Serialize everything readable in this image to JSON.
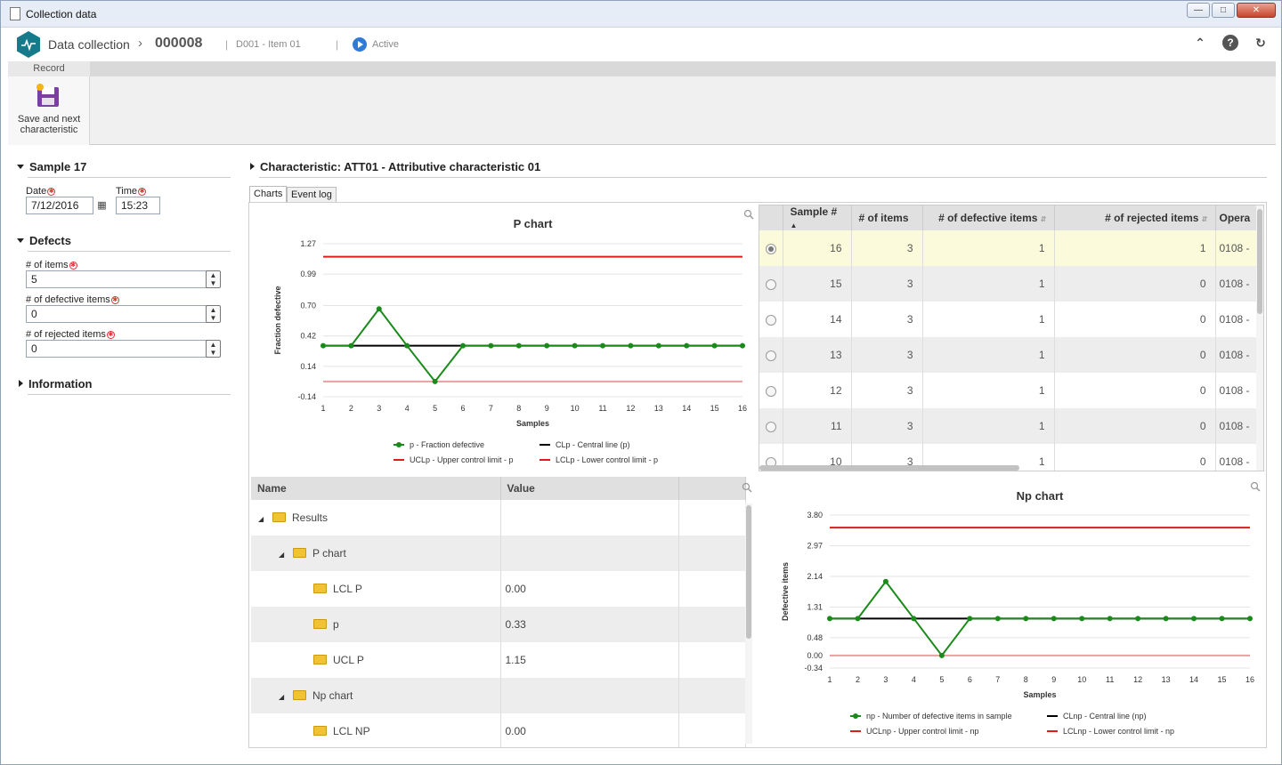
{
  "window": {
    "title": "Collection data"
  },
  "header": {
    "app_name": "Data collection",
    "record_id": "000008",
    "item": "D001 - Item 01",
    "status": "Active",
    "accent": "#2f7bd6"
  },
  "ribbon": {
    "tab": "Record",
    "save_next_line1": "Save and next",
    "save_next_line2": "characteristic"
  },
  "left": {
    "sample_title": "Sample 17",
    "date_label": "Date",
    "date_value": "7/12/2016",
    "time_label": "Time",
    "time_value": "15:23",
    "defects_title": "Defects",
    "items_label": "# of items",
    "items_value": "5",
    "defective_label": "# of defective items",
    "defective_value": "0",
    "rejected_label": "# of rejected items",
    "rejected_value": "0",
    "information_title": "Information"
  },
  "characteristic": {
    "title": "Characteristic: ATT01 - Attributive characteristic 01",
    "tab_charts": "Charts",
    "tab_eventlog": "Event log"
  },
  "samples_table": {
    "columns": [
      "Sample #",
      "# of items",
      "# of defective items",
      "# of rejected items",
      "Opera"
    ],
    "rows": [
      {
        "sample": "16",
        "items": "3",
        "defective": "1",
        "rejected": "1",
        "oper": "0108 -"
      },
      {
        "sample": "15",
        "items": "3",
        "defective": "1",
        "rejected": "0",
        "oper": "0108 -"
      },
      {
        "sample": "14",
        "items": "3",
        "defective": "1",
        "rejected": "0",
        "oper": "0108 -"
      },
      {
        "sample": "13",
        "items": "3",
        "defective": "1",
        "rejected": "0",
        "oper": "0108 -"
      },
      {
        "sample": "12",
        "items": "3",
        "defective": "1",
        "rejected": "0",
        "oper": "0108 -"
      },
      {
        "sample": "11",
        "items": "3",
        "defective": "1",
        "rejected": "0",
        "oper": "0108 -"
      },
      {
        "sample": "10",
        "items": "3",
        "defective": "1",
        "rejected": "0",
        "oper": "0108 -"
      }
    ]
  },
  "results_tree": {
    "columns": [
      "Name",
      "Value"
    ],
    "rows": [
      {
        "name": "Results",
        "value": "",
        "level": 0,
        "expand": true
      },
      {
        "name": "P chart",
        "value": "",
        "level": 1,
        "expand": true
      },
      {
        "name": "LCL P",
        "value": "0.00",
        "level": 2,
        "expand": false
      },
      {
        "name": "p",
        "value": "0.33",
        "level": 2,
        "expand": false
      },
      {
        "name": "UCL P",
        "value": "1.15",
        "level": 2,
        "expand": false
      },
      {
        "name": "Np chart",
        "value": "",
        "level": 1,
        "expand": true
      },
      {
        "name": "LCL NP",
        "value": "0.00",
        "level": 2,
        "expand": false
      }
    ]
  },
  "chart_data": [
    {
      "type": "line",
      "title": "P chart",
      "xlabel": "Samples",
      "ylabel": "Fraction defective",
      "ylim": [
        -0.14,
        1.27
      ],
      "yticks": [
        "1.27",
        "0.99",
        "0.70",
        "0.42",
        "0.14",
        "-0.14"
      ],
      "categories": [
        "1",
        "2",
        "3",
        "4",
        "5",
        "6",
        "7",
        "8",
        "9",
        "10",
        "11",
        "12",
        "13",
        "14",
        "15",
        "16"
      ],
      "series": [
        {
          "name": "p - Fraction defective",
          "color": "#1a8a1a",
          "markers": true,
          "values": [
            0.33,
            0.33,
            0.67,
            0.33,
            0.0,
            0.33,
            0.33,
            0.33,
            0.33,
            0.33,
            0.33,
            0.33,
            0.33,
            0.33,
            0.33,
            0.33
          ]
        },
        {
          "name": "CLp - Central line (p)",
          "color": "#000000",
          "values": [
            0.33,
            0.33,
            0.33,
            0.33,
            0.33,
            0.33,
            0.33,
            0.33,
            0.33,
            0.33,
            0.33,
            0.33,
            0.33,
            0.33,
            0.33,
            0.33
          ]
        },
        {
          "name": "UCLp - Upper control limit - p",
          "color": "#e01b1b",
          "values": [
            1.15,
            1.15,
            1.15,
            1.15,
            1.15,
            1.15,
            1.15,
            1.15,
            1.15,
            1.15,
            1.15,
            1.15,
            1.15,
            1.15,
            1.15,
            1.15
          ]
        },
        {
          "name": "LCLp - Lower control limit - p",
          "color": "#e01b1b",
          "values": [
            0,
            0,
            0,
            0,
            0,
            0,
            0,
            0,
            0,
            0,
            0,
            0,
            0,
            0,
            0,
            0
          ]
        }
      ],
      "grid": true,
      "legend": "bottom"
    },
    {
      "type": "line",
      "title": "Np chart",
      "xlabel": "Samples",
      "ylabel": "Defective items",
      "ylim": [
        -0.34,
        3.8
      ],
      "yticks": [
        "3.80",
        "2.97",
        "2.14",
        "1.31",
        "0.48",
        "0.00",
        "-0.34"
      ],
      "categories": [
        "1",
        "2",
        "3",
        "4",
        "5",
        "6",
        "7",
        "8",
        "9",
        "10",
        "11",
        "12",
        "13",
        "14",
        "15",
        "16"
      ],
      "series": [
        {
          "name": "np - Number of defective items in sample",
          "color": "#1a8a1a",
          "markers": true,
          "values": [
            1,
            1,
            2,
            1,
            0,
            1,
            1,
            1,
            1,
            1,
            1,
            1,
            1,
            1,
            1,
            1
          ]
        },
        {
          "name": "CLnp - Central line (np)",
          "color": "#000000",
          "values": [
            1,
            1,
            1,
            1,
            1,
            1,
            1,
            1,
            1,
            1,
            1,
            1,
            1,
            1,
            1,
            1
          ]
        },
        {
          "name": "UCLnp - Upper control limit - np",
          "color": "#e01b1b",
          "values": [
            3.46,
            3.46,
            3.46,
            3.46,
            3.46,
            3.46,
            3.46,
            3.46,
            3.46,
            3.46,
            3.46,
            3.46,
            3.46,
            3.46,
            3.46,
            3.46
          ]
        },
        {
          "name": "LCLnp - Lower control limit - np",
          "color": "#e01b1b",
          "values": [
            0,
            0,
            0,
            0,
            0,
            0,
            0,
            0,
            0,
            0,
            0,
            0,
            0,
            0,
            0,
            0
          ]
        }
      ],
      "grid": true,
      "legend": "bottom"
    }
  ]
}
